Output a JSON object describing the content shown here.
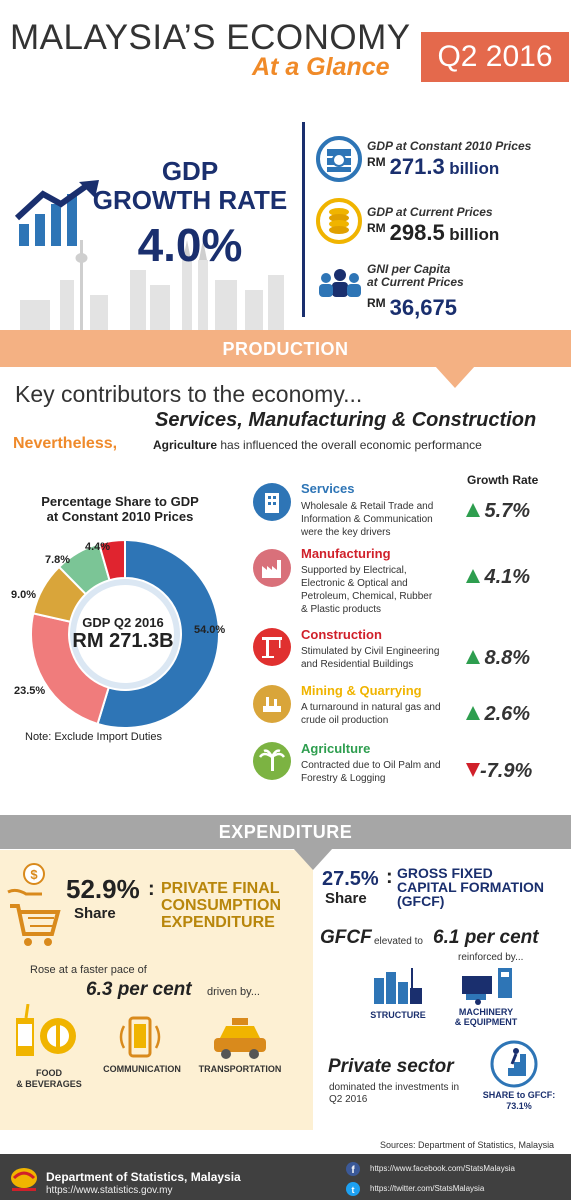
{
  "header": {
    "title_main": "MALAYSIA’S ECONOMY",
    "title_sub": "At a Glance",
    "period_badge": "Q2 2016"
  },
  "gdp": {
    "heading_line1": "GDP",
    "heading_line2": "GROWTH RATE",
    "growth_value": "4.0%",
    "kpis": [
      {
        "label": "GDP at Constant 2010 Prices",
        "currency": "RM",
        "value": "271.3",
        "unit": "billion",
        "icon": "money-stack-icon"
      },
      {
        "label": "GDP at Current Prices",
        "currency": "RM",
        "value": "298.5",
        "unit": "billion",
        "icon": "coins-icon"
      },
      {
        "label_line1": "GNI per Capita",
        "label_line2": "at Current Prices",
        "currency": "RM",
        "value": "36,675",
        "unit": "",
        "icon": "people-icon"
      }
    ]
  },
  "production": {
    "band_label": "PRODUCTION",
    "key_line1": "Key contributors to the economy...",
    "key_line2": "Services, Manufacturing & Construction",
    "nevertheless": "Nevertheless,",
    "agri_word": "Agriculture",
    "agri_rest": "has influenced the overall economic performance",
    "pie_title_line1": "Percentage Share to GDP",
    "pie_title_line2": "at Constant 2010 Prices",
    "pie_center_line1": "GDP Q2 2016",
    "pie_center_line2": "RM 271.3B",
    "pie_note": "Note: Exclude Import Duties",
    "growth_head": "Growth Rate",
    "sectors": [
      {
        "name": "Services",
        "desc": [
          "Wholesale & Retail Trade and",
          "Information & Communication",
          "were the key drivers"
        ],
        "growth": "5.7%",
        "direction": "up",
        "color": "#2e75b6",
        "icon": "building-icon"
      },
      {
        "name": "Manufacturing",
        "desc": [
          "Supported by Electrical,",
          "Electronic & Optical and",
          "Petroleum, Chemical, Rubber",
          "& Plastic products"
        ],
        "growth": "4.1%",
        "direction": "up",
        "color": "#d0202a",
        "icon": "factory-icon"
      },
      {
        "name": "Construction",
        "desc": [
          "Stimulated by Civil Engineering",
          "and Residential Buildings"
        ],
        "growth": "8.8%",
        "direction": "up",
        "color": "#d0202a",
        "icon": "crane-icon"
      },
      {
        "name": "Mining & Quarrying",
        "desc": [
          "A turnaround in natural gas and",
          "crude oil production"
        ],
        "growth": "2.6%",
        "direction": "up",
        "color": "#f0b400",
        "icon": "mining-icon"
      },
      {
        "name": "Agriculture",
        "desc": [
          "Contracted due to Oil Palm and",
          "Forestry & Logging"
        ],
        "growth": "-7.9%",
        "direction": "down",
        "color": "#2e9e4f",
        "icon": "palm-tree-icon"
      }
    ]
  },
  "chart_data": {
    "type": "pie",
    "title": "Percentage Share to GDP at Constant 2010 Prices",
    "categories": [
      "Services",
      "Manufacturing",
      "Mining & Quarrying",
      "Agriculture",
      "Construction"
    ],
    "values": [
      54.0,
      23.5,
      9.0,
      7.8,
      4.4
    ],
    "labels": [
      "54.0%",
      "23.5%",
      "9.0%",
      "7.8%",
      "4.4%"
    ],
    "colors": [
      "#2e75b6",
      "#f07c7c",
      "#d9a53a",
      "#7bc596",
      "#e0242f"
    ]
  },
  "expenditure": {
    "band_label": "EXPENDITURE",
    "pfce": {
      "percent": "52.9%",
      "share": "Share",
      "title": [
        "PRIVATE FINAL",
        "CONSUMPTION",
        "EXPENDITURE"
      ],
      "rose_text": "Rose at a faster pace of",
      "pace": "6.3 per cent",
      "driven": "driven by...",
      "categories": [
        {
          "label": [
            "FOOD",
            "& BEVERAGES"
          ],
          "icon": "food-beverages-icon"
        },
        {
          "label": [
            "COMMUNICATION"
          ],
          "icon": "smartphone-icon"
        },
        {
          "label": [
            "TRANSPORTATION"
          ],
          "icon": "taxi-icon"
        }
      ]
    },
    "gfcf": {
      "percent": "27.5%",
      "share": "Share",
      "title": [
        "GROSS FIXED",
        "CAPITAL FORMATION",
        "(GFCF)"
      ],
      "lead": "GFCF",
      "elevated": "elevated to",
      "value": "6.1 per cent",
      "reinforced": "reinforced by...",
      "assets": [
        {
          "label": [
            "STRUCTURE"
          ],
          "icon": "structure-icon"
        },
        {
          "label": [
            "MACHINERY",
            "& EQUIPMENT"
          ],
          "icon": "machinery-icon"
        }
      ],
      "private_title": "Private sector",
      "private_desc": "dominated the investments in Q2 2016",
      "share_to_gfcf": [
        "SHARE to GFCF:",
        "73.1%"
      ]
    }
  },
  "footer": {
    "sources": "Sources: Department of Statistics, Malaysia",
    "org": "Department of Statistics, Malaysia",
    "url": "https://www.statistics.gov.my",
    "facebook": "https://www.facebook.com/StatsMalaysia",
    "twitter": "https://twitter.com/StatsMalaysia"
  }
}
